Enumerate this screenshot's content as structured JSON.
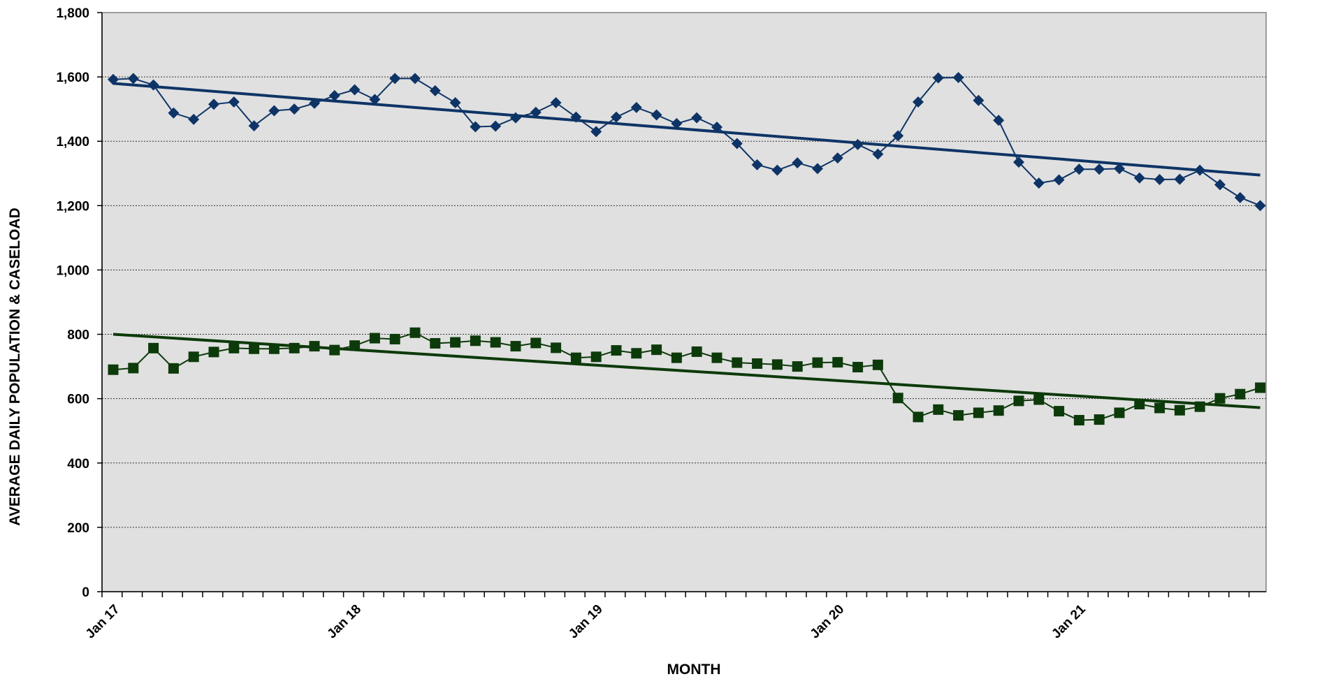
{
  "chart_data": {
    "type": "line",
    "xlabel": "MONTH",
    "ylabel": "AVERAGE DAILY POPULATION & CASELOAD",
    "ylim": [
      0,
      1800
    ],
    "yticks": [
      0,
      200,
      400,
      600,
      800,
      1000,
      1200,
      1400,
      1600,
      1800
    ],
    "ytick_labels": [
      "0",
      "200",
      "400",
      "600",
      "800",
      "1,000",
      "1,200",
      "1,400",
      "1,600",
      "1,800"
    ],
    "x_tick_labels": [
      {
        "label": "Jan 17",
        "month_index": 0
      },
      {
        "label": "Jan 18",
        "month_index": 12
      },
      {
        "label": "Jan 19",
        "month_index": 24
      },
      {
        "label": "Jan 20",
        "month_index": 36
      },
      {
        "label": "Jan 21",
        "month_index": 48
      }
    ],
    "n_months": 58,
    "grid": true,
    "legend": "none",
    "series": [
      {
        "marker": "diamond",
        "color": "#0e3466",
        "values": [
          1592,
          1595,
          1575,
          1488,
          1468,
          1515,
          1522,
          1448,
          1495,
          1500,
          1518,
          1542,
          1560,
          1530,
          1595,
          1595,
          1557,
          1520,
          1445,
          1447,
          1473,
          1490,
          1520,
          1475,
          1430,
          1475,
          1505,
          1482,
          1455,
          1473,
          1444,
          1393,
          1327,
          1310,
          1333,
          1315,
          1348,
          1390,
          1360,
          1417,
          1522,
          1597,
          1598,
          1527,
          1465,
          1335,
          1270,
          1280,
          1313,
          1313,
          1315,
          1286,
          1281,
          1282,
          1310,
          1265,
          1225,
          1200
        ],
        "trend": [
          1580,
          1295
        ]
      },
      {
        "marker": "square",
        "color": "#0d3a0a",
        "values": [
          690,
          695,
          757,
          694,
          730,
          745,
          757,
          755,
          755,
          757,
          763,
          751,
          765,
          788,
          785,
          805,
          772,
          775,
          780,
          775,
          763,
          773,
          758,
          727,
          730,
          750,
          741,
          752,
          727,
          746,
          727,
          712,
          709,
          706,
          700,
          712,
          713,
          698,
          705,
          602,
          543,
          566,
          548,
          556,
          563,
          593,
          597,
          561,
          533,
          535,
          556,
          583,
          571,
          564,
          575,
          601,
          614,
          634
        ],
        "trend": [
          800,
          572
        ]
      }
    ]
  }
}
